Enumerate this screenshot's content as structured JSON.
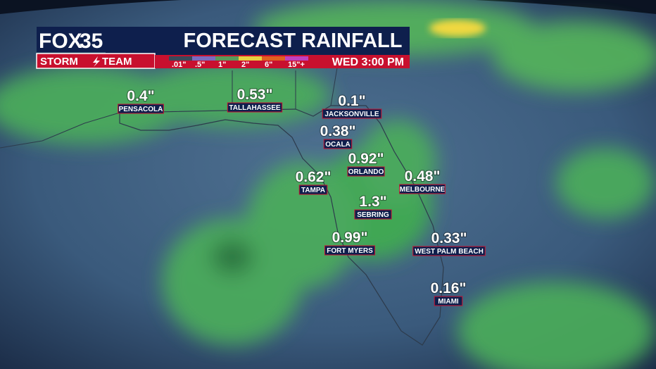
{
  "header": {
    "logo_fox": "FOX",
    "logo_number": "35",
    "team_left": "STORM",
    "team_right": "TEAM",
    "title": "FORECAST RAINFALL",
    "valid_time": "WED 3:00 PM",
    "legend": [
      ".01\"",
      ".5\"",
      "1\"",
      "2\"",
      "6\"",
      "15\"+"
    ]
  },
  "cities": [
    {
      "name": "PENSACOLA",
      "amount": "0.4\""
    },
    {
      "name": "TALLAHASSEE",
      "amount": "0.53\""
    },
    {
      "name": "JACKSONVILLE",
      "amount": "0.1\""
    },
    {
      "name": "OCALA",
      "amount": "0.38\""
    },
    {
      "name": "ORLANDO",
      "amount": "0.92\""
    },
    {
      "name": "TAMPA",
      "amount": "0.62\""
    },
    {
      "name": "MELBOURNE",
      "amount": "0.48\""
    },
    {
      "name": "SEBRING",
      "amount": "1.3\""
    },
    {
      "name": "FORT MYERS",
      "amount": "0.99\""
    },
    {
      "name": "WEST PALM BEACH",
      "amount": "0.33\""
    },
    {
      "name": "MIAMI",
      "amount": "0.16\""
    }
  ]
}
